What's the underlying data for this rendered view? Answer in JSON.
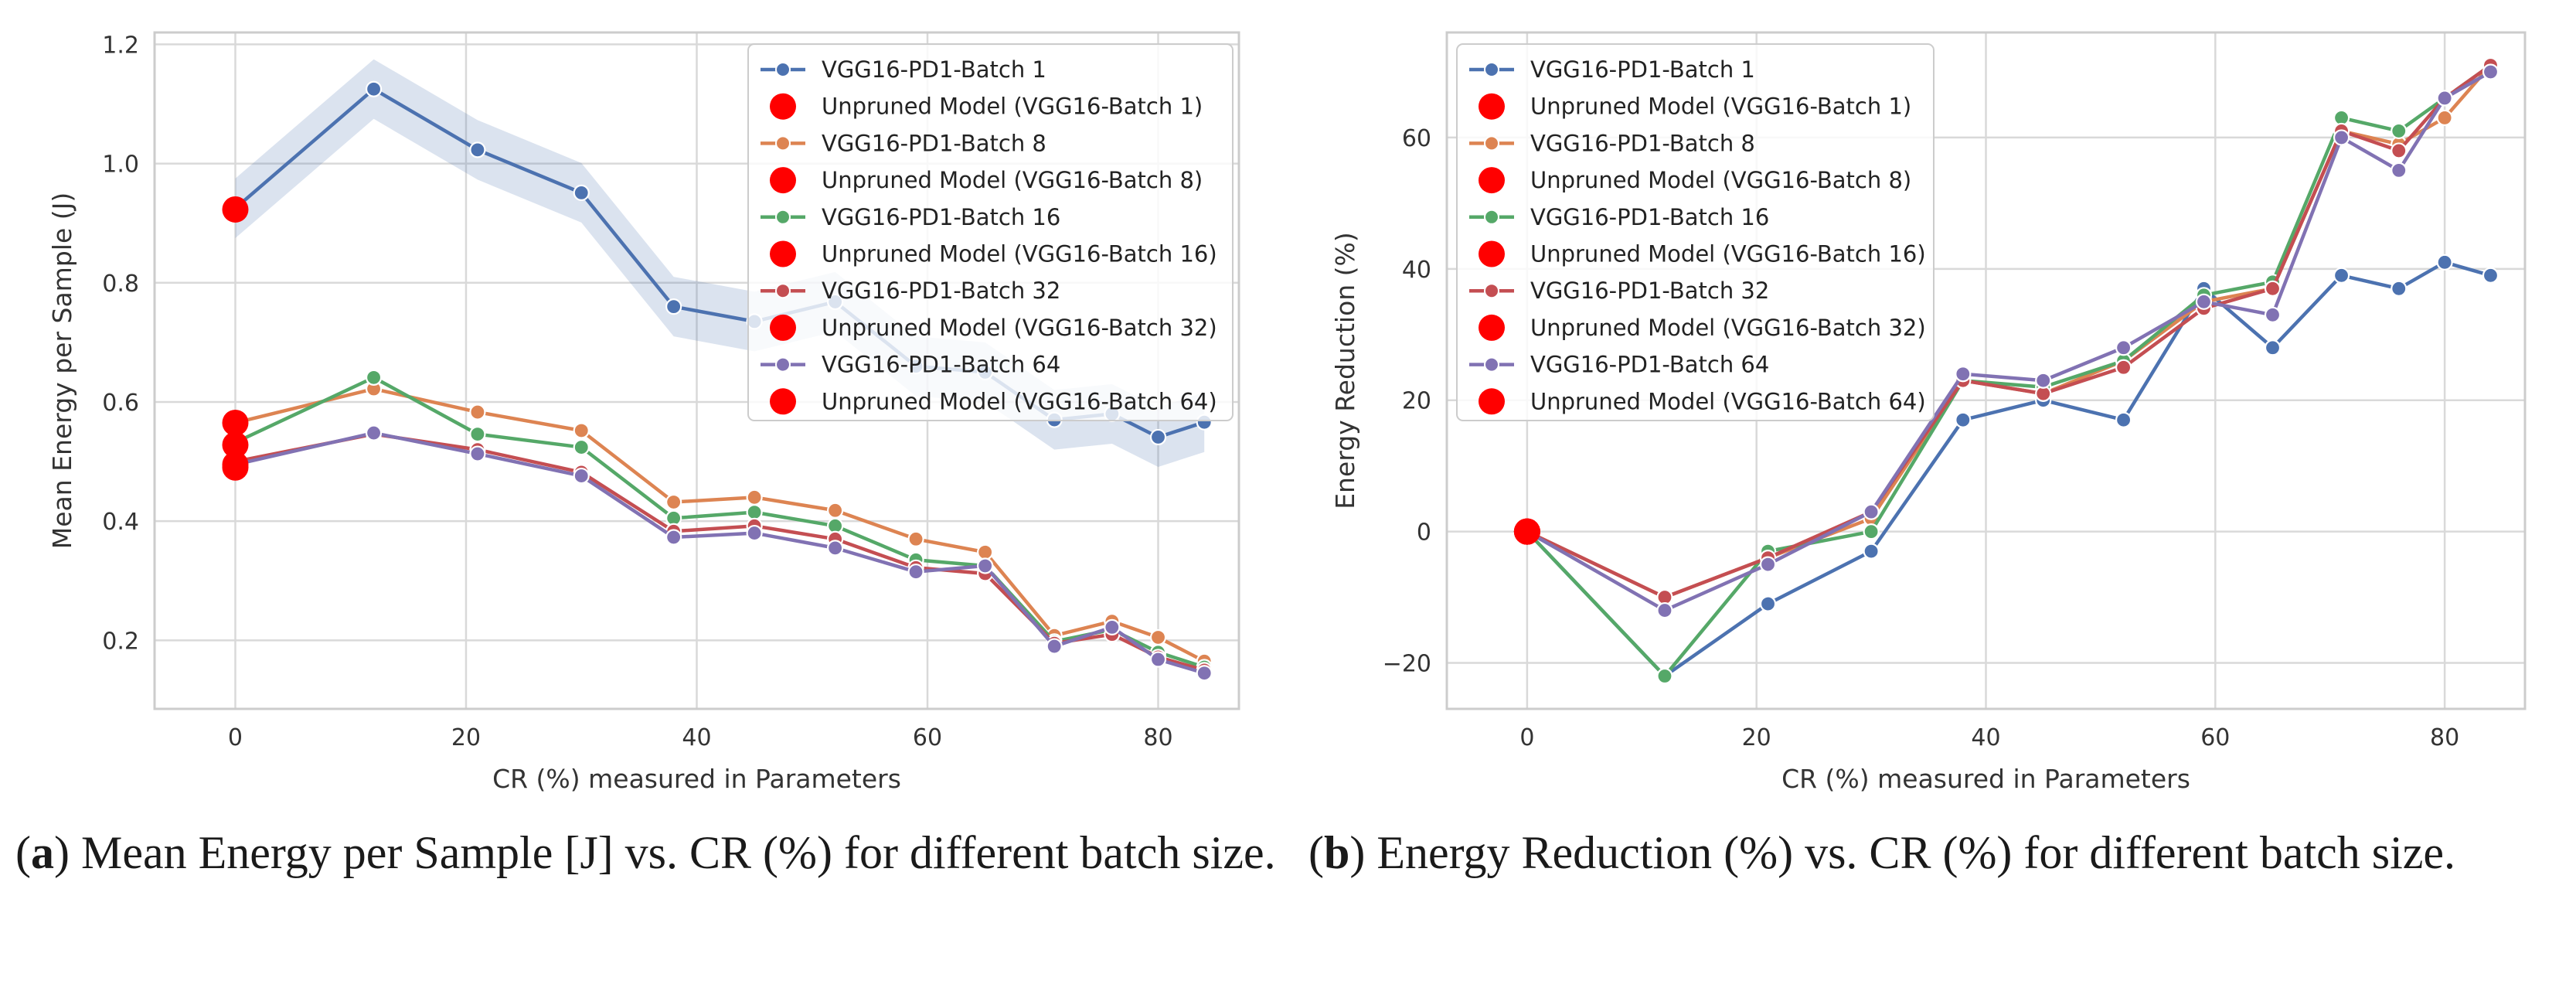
{
  "chart_data": [
    {
      "type": "line",
      "xlabel": "CR (%) measured in Parameters",
      "ylabel": "Mean Energy per Sample (J)",
      "xlim": [
        -7,
        87
      ],
      "ylim": [
        0.085,
        1.22
      ],
      "xticks": [
        0,
        20,
        40,
        60,
        80
      ],
      "yticks": [
        0.2,
        0.4,
        0.6,
        0.8,
        1.0,
        1.2
      ],
      "ytick_labels": [
        "0.2",
        "0.4",
        "0.6",
        "0.8",
        "1.0",
        "1.2"
      ],
      "grid": true,
      "legend_position": "top-right",
      "x": [
        0,
        12,
        21,
        30,
        38,
        45,
        52,
        59,
        65,
        71,
        76,
        80,
        84
      ],
      "series": [
        {
          "name": "VGG16-PD1-Batch 1",
          "color": "#4c72b0",
          "band": 0.05,
          "values": [
            0.925,
            1.125,
            1.023,
            0.951,
            0.76,
            0.735,
            0.768,
            0.66,
            0.65,
            0.57,
            0.58,
            0.541,
            0.566
          ]
        },
        {
          "name": "VGG16-PD1-Batch 8",
          "color": "#dd8452",
          "values": [
            0.565,
            0.622,
            0.583,
            0.552,
            0.432,
            0.44,
            0.418,
            0.37,
            0.348,
            0.208,
            0.232,
            0.205,
            0.165
          ]
        },
        {
          "name": "VGG16-PD1-Batch 16",
          "color": "#55a868",
          "values": [
            0.532,
            0.641,
            0.546,
            0.524,
            0.405,
            0.415,
            0.392,
            0.335,
            0.325,
            0.198,
            0.218,
            0.18,
            0.155
          ]
        },
        {
          "name": "VGG16-PD1-Batch 32",
          "color": "#c44e52",
          "values": [
            0.5,
            0.546,
            0.52,
            0.482,
            0.383,
            0.392,
            0.37,
            0.322,
            0.312,
            0.195,
            0.21,
            0.172,
            0.15
          ]
        },
        {
          "name": "VGG16-PD1-Batch 64",
          "color": "#8172b3",
          "values": [
            0.495,
            0.548,
            0.513,
            0.476,
            0.373,
            0.38,
            0.355,
            0.315,
            0.325,
            0.19,
            0.222,
            0.168,
            0.145
          ]
        }
      ],
      "unpruned": [
        {
          "name": "Unpruned Model (VGG16-Batch 1)",
          "x": 0,
          "y": 0.923
        },
        {
          "name": "Unpruned Model (VGG16-Batch 8)",
          "x": 0,
          "y": 0.565
        },
        {
          "name": "Unpruned Model (VGG16-Batch 16)",
          "x": 0,
          "y": 0.528
        },
        {
          "name": "Unpruned Model (VGG16-Batch 32)",
          "x": 0,
          "y": 0.495
        },
        {
          "name": "Unpruned Model (VGG16-Batch 64)",
          "x": 0,
          "y": 0.49
        }
      ],
      "caption_letter": "a",
      "caption_text": "Mean Energy per Sample [J] vs.  CR (%) for different batch size."
    },
    {
      "type": "line",
      "xlabel": "CR (%) measured in Parameters",
      "ylabel": "Energy Reduction (%)",
      "xlim": [
        -7,
        87
      ],
      "ylim": [
        -27,
        76
      ],
      "xticks": [
        0,
        20,
        40,
        60,
        80
      ],
      "yticks": [
        -20,
        0,
        20,
        40,
        60
      ],
      "ytick_labels": [
        "−20",
        "0",
        "20",
        "40",
        "60"
      ],
      "grid": true,
      "legend_position": "top-left",
      "x": [
        0,
        12,
        21,
        30,
        38,
        45,
        52,
        59,
        65,
        71,
        76,
        80,
        84
      ],
      "series": [
        {
          "name": "VGG16-PD1-Batch 1",
          "color": "#4c72b0",
          "values": [
            0,
            -22,
            -11,
            -3,
            17,
            20,
            17,
            37,
            28,
            39,
            37,
            41,
            39
          ]
        },
        {
          "name": "VGG16-PD1-Batch 8",
          "color": "#dd8452",
          "values": [
            0,
            -10,
            -4,
            2,
            23,
            21,
            26,
            35,
            37,
            61,
            59,
            63,
            71
          ]
        },
        {
          "name": "VGG16-PD1-Batch 16",
          "color": "#55a868",
          "values": [
            0,
            -22,
            -3,
            0,
            23,
            22,
            26,
            36,
            38,
            63,
            61,
            66,
            71
          ]
        },
        {
          "name": "VGG16-PD1-Batch 32",
          "color": "#c44e52",
          "values": [
            0,
            -10,
            -4,
            3,
            23,
            21,
            25,
            34,
            37,
            61,
            58,
            66,
            71
          ]
        },
        {
          "name": "VGG16-PD1-Batch 64",
          "color": "#8172b3",
          "values": [
            0,
            -12,
            -5,
            3,
            24,
            23,
            28,
            35,
            33,
            60,
            55,
            66,
            70
          ]
        }
      ],
      "unpruned": [
        {
          "name": "Unpruned Model (VGG16-Batch 1)",
          "x": 0,
          "y": 0
        },
        {
          "name": "Unpruned Model (VGG16-Batch 8)",
          "x": 0,
          "y": 0
        },
        {
          "name": "Unpruned Model (VGG16-Batch 16)",
          "x": 0,
          "y": 0
        },
        {
          "name": "Unpruned Model (VGG16-Batch 32)",
          "x": 0,
          "y": 0
        },
        {
          "name": "Unpruned Model (VGG16-Batch 64)",
          "x": 0,
          "y": 0
        }
      ],
      "caption_letter": "b",
      "caption_text": "Energy Reduction (%) vs. CR (%) for different batch size."
    }
  ],
  "colors": {
    "unpruned": "#ff0000",
    "grid": "#d9d9d9",
    "frame": "#cccccc"
  }
}
